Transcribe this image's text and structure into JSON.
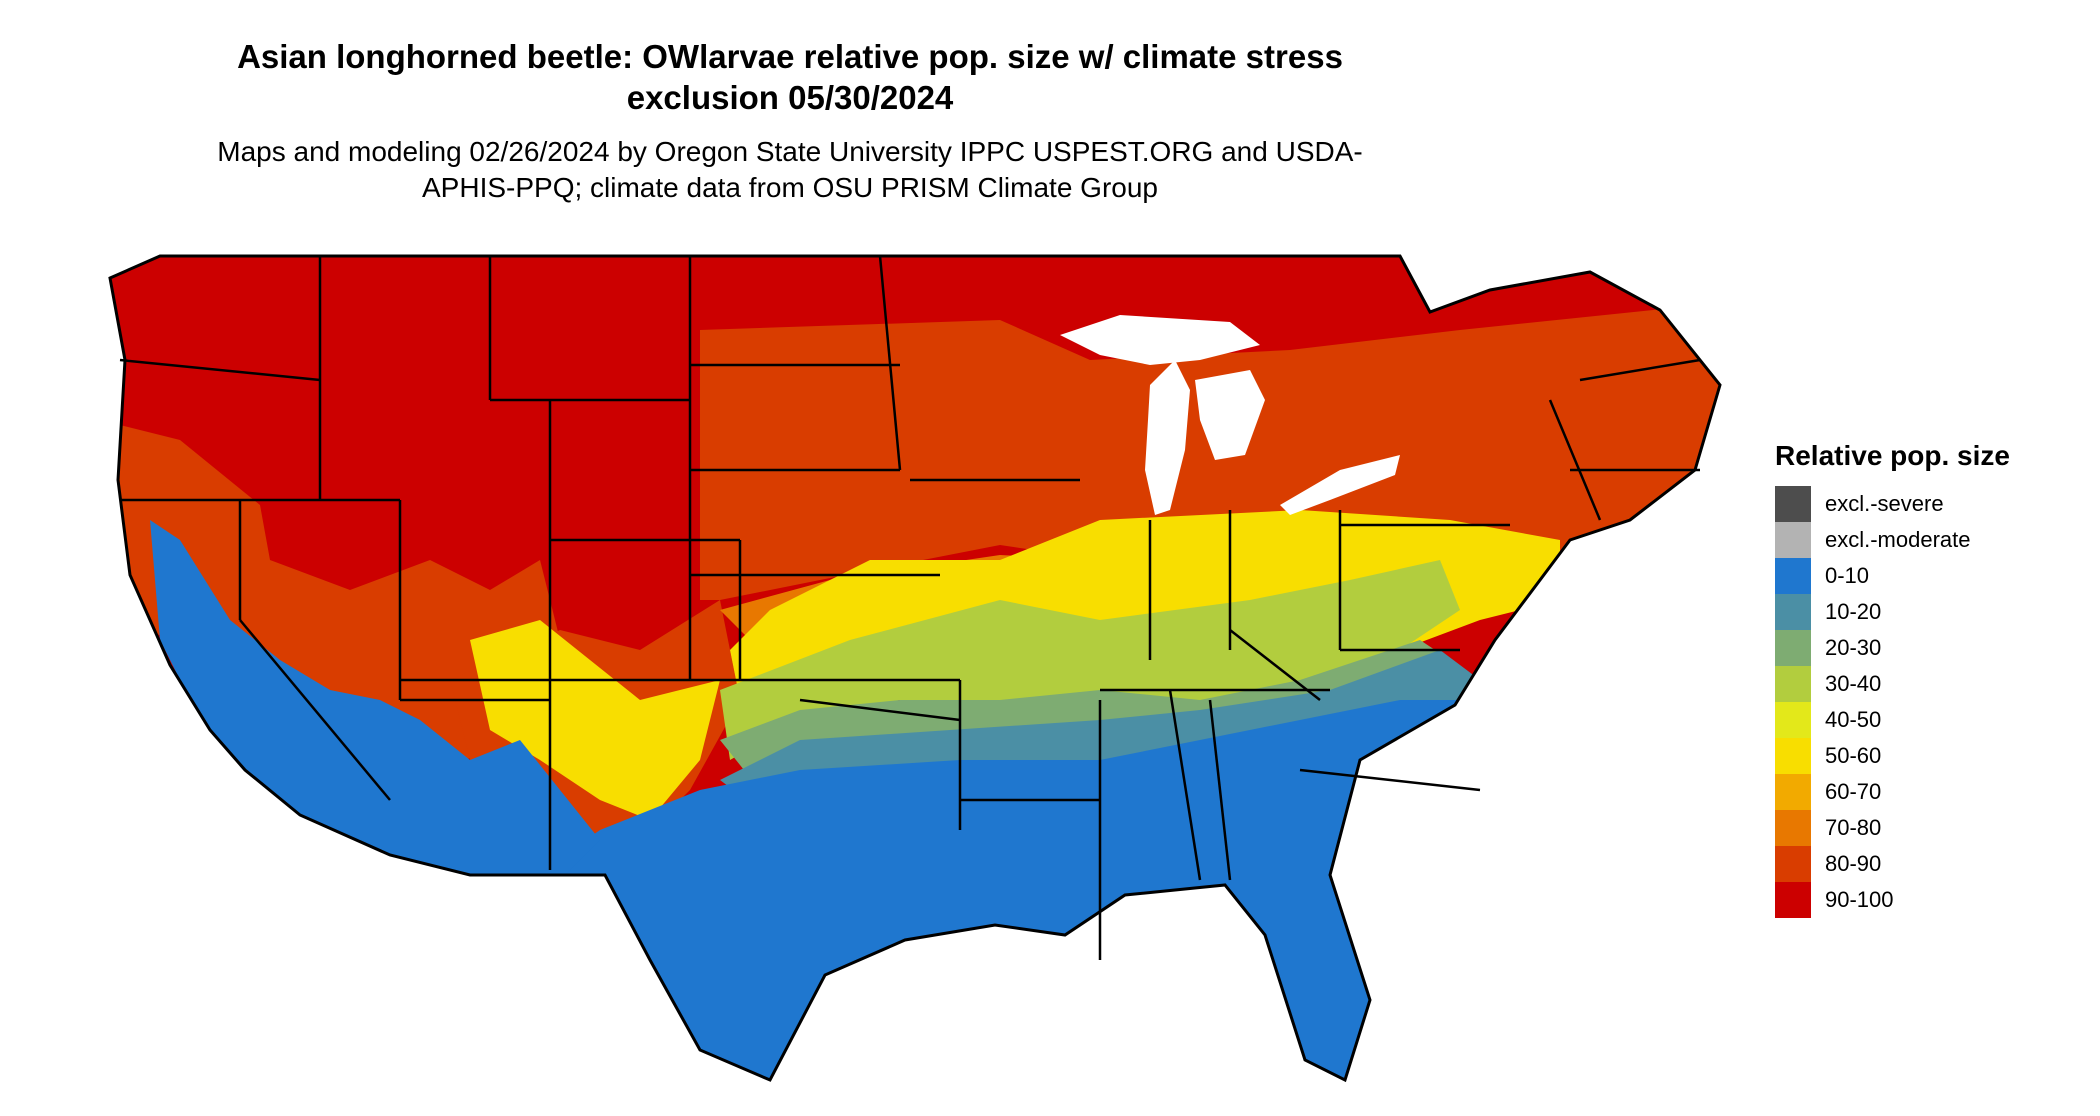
{
  "title": "Asian longhorned beetle: OWlarvae relative pop. size w/ climate stress exclusion 05/30/2024",
  "subtitle": "Maps and modeling 02/26/2024 by Oregon State University IPPC USPEST.ORG and USDA-APHIS-PPQ; climate data from OSU PRISM Climate Group",
  "legend": {
    "title": "Relative pop. size",
    "items": [
      {
        "label": "excl.-severe",
        "color": "#4d4d4d"
      },
      {
        "label": "excl.-moderate",
        "color": "#b3b3b3"
      },
      {
        "label": "0-10",
        "color": "#1f77cf"
      },
      {
        "label": "10-20",
        "color": "#4b8fa5"
      },
      {
        "label": "20-30",
        "color": "#7eac72"
      },
      {
        "label": "30-40",
        "color": "#b2cd3e"
      },
      {
        "label": "40-50",
        "color": "#e3e81a"
      },
      {
        "label": "50-60",
        "color": "#f8de00"
      },
      {
        "label": "60-70",
        "color": "#f2aa00"
      },
      {
        "label": "70-80",
        "color": "#e87800"
      },
      {
        "label": "80-90",
        "color": "#d93d00"
      },
      {
        "label": "90-100",
        "color": "#cc0000"
      }
    ]
  }
}
